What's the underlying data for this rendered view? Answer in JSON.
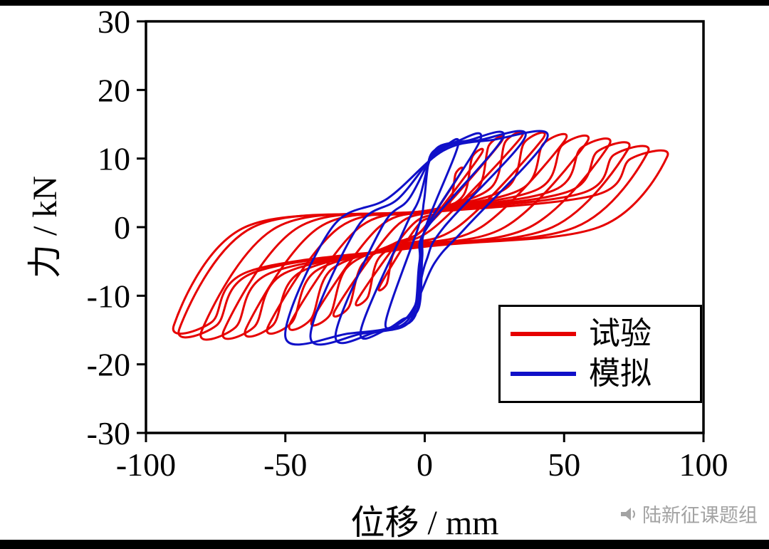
{
  "chart_data": {
    "type": "line",
    "subtype": "hysteresis-loops",
    "title": "",
    "xlabel": "位移 / mm",
    "ylabel": "力 / kN",
    "xlim": [
      -100,
      100
    ],
    "ylim": [
      -30,
      30
    ],
    "xticks": [
      -100,
      -50,
      0,
      50,
      100
    ],
    "yticks": [
      -30,
      -20,
      -10,
      0,
      10,
      20,
      30
    ],
    "grid": false,
    "legend_position": "lower right",
    "legend": [
      {
        "label": "试验",
        "color": "#e60000"
      },
      {
        "label": "模拟",
        "color": "#1010c8"
      }
    ],
    "series": [
      {
        "name": "试验",
        "color": "#e60000",
        "line_width": 3,
        "shape": {
          "kuP": 0.42,
          "kuN": 0.56,
          "pinch": 0.2,
          "dx": 0.7,
          "df": 0.45,
          "px": 0.85
        },
        "cycles": [
          {
            "dp": 13,
            "dn": -16,
            "fp": 8.0,
            "fn": -8.5
          },
          {
            "dp": 20,
            "dn": -24,
            "fp": 10.5,
            "fn": -10.5
          },
          {
            "dp": 27,
            "dn": -32,
            "fp": 12.2,
            "fn": -12.0
          },
          {
            "dp": 34,
            "dn": -40,
            "fp": 12.8,
            "fn": -13.2
          },
          {
            "dp": 42,
            "dn": -48,
            "fp": 12.7,
            "fn": -13.8
          },
          {
            "dp": 50,
            "dn": -56,
            "fp": 12.5,
            "fn": -14.3
          },
          {
            "dp": 58,
            "dn": -64,
            "fp": 12.3,
            "fn": -14.7
          },
          {
            "dp": 66,
            "dn": -72,
            "fp": 11.9,
            "fn": -15.0
          },
          {
            "dp": 73,
            "dn": -80,
            "fp": 11.4,
            "fn": -15.1
          },
          {
            "dp": 80,
            "dn": -88,
            "fp": 10.9,
            "fn": -14.8
          },
          {
            "dp": 87,
            "dn": -90,
            "fp": 10.3,
            "fn": -14.3
          }
        ]
      },
      {
        "name": "模拟",
        "color": "#1010c8",
        "line_width": 3,
        "shape": {
          "kuP": 0.45,
          "kuN": 0.95,
          "pinch": 0.32,
          "dx": 0.15,
          "df": 0.85,
          "px": 0.55
        },
        "cycles": [
          {
            "dp": 12,
            "dn": -14,
            "fp": 12.0,
            "fn": -13.8
          },
          {
            "dp": 20,
            "dn": -23,
            "fp": 12.8,
            "fn": -15.2
          },
          {
            "dp": 28,
            "dn": -32,
            "fp": 13.0,
            "fn": -15.8
          },
          {
            "dp": 36,
            "dn": -41,
            "fp": 13.1,
            "fn": -16.0
          },
          {
            "dp": 44,
            "dn": -50,
            "fp": 13.1,
            "fn": -16.0
          }
        ]
      }
    ]
  },
  "watermark": {
    "text": "陆新征课题组",
    "icon": "megaphone-icon",
    "color": "#a3a3a3"
  }
}
